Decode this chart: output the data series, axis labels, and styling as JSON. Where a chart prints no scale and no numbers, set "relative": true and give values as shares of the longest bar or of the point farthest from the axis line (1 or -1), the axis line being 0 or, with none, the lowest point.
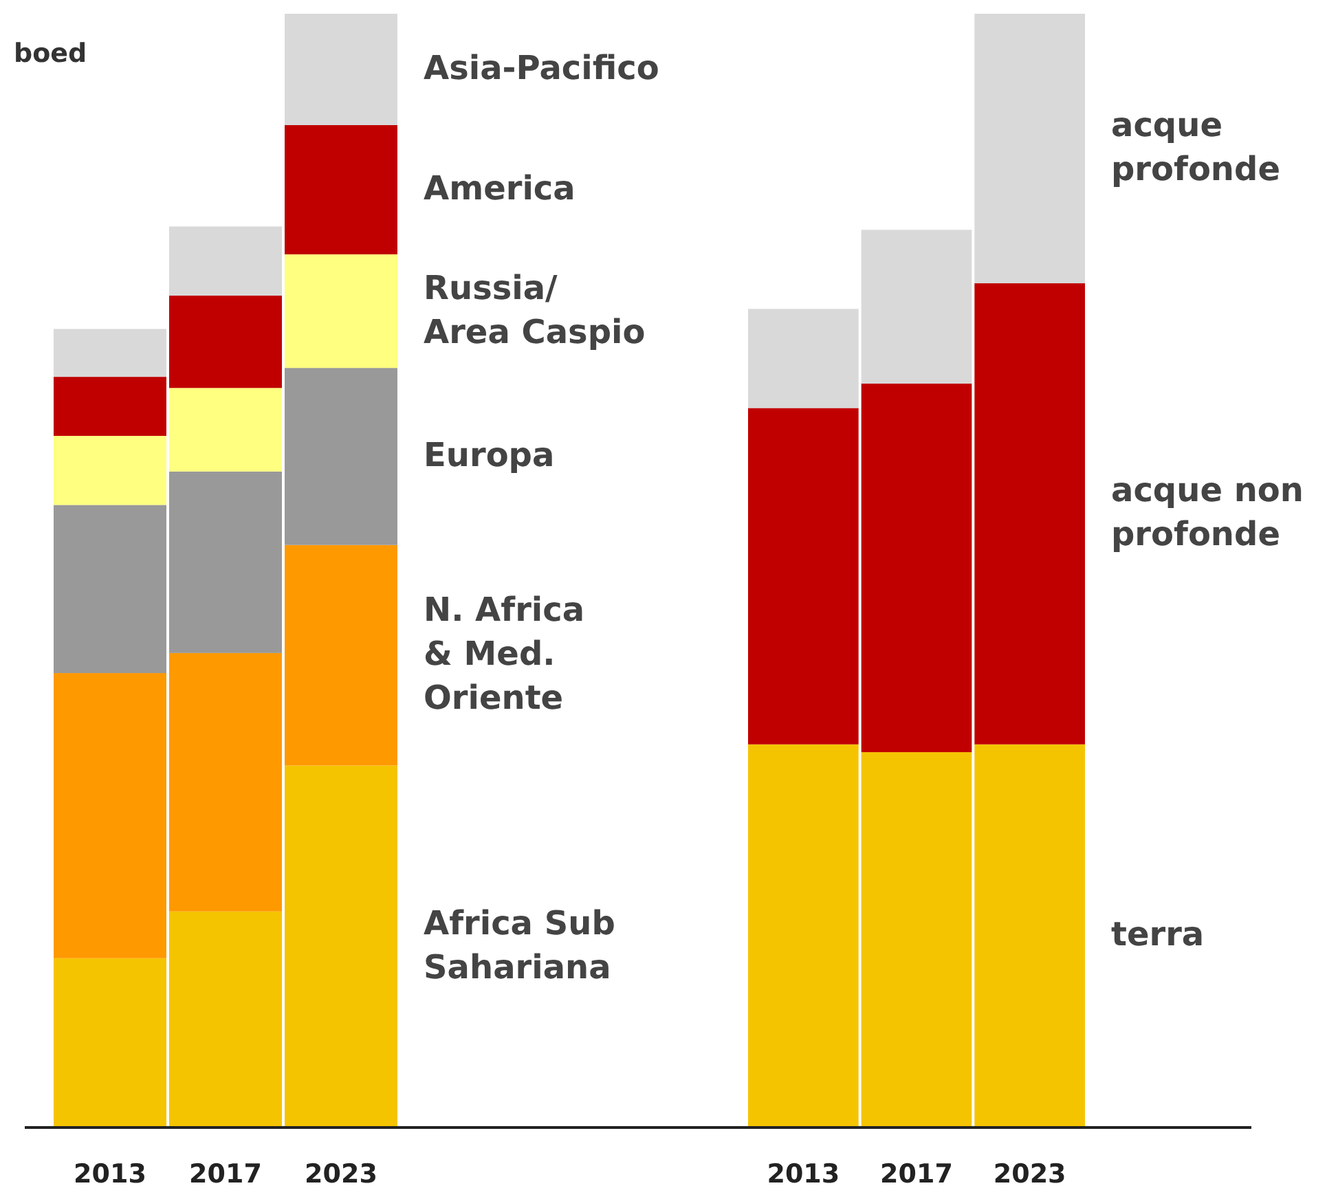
{
  "chart_data": [
    {
      "type": "bar",
      "stacked": true,
      "relative": true,
      "legend": false,
      "ylabel": "boed",
      "categories": [
        "2013",
        "2017",
        "2023"
      ],
      "series": [
        {
          "name": "Africa Sub\nSahariana",
          "color": "#f5c400",
          "values": [
            0.152,
            0.194,
            0.325
          ]
        },
        {
          "name": "N. Africa\n& Med.\nOriente",
          "color": "#ff9900",
          "values": [
            0.256,
            0.232,
            0.198
          ]
        },
        {
          "name": "Europa",
          "color": "#999999",
          "values": [
            0.151,
            0.163,
            0.159
          ]
        },
        {
          "name": "Russia/\nArea Caspio",
          "color": "#ffff80",
          "values": [
            0.062,
            0.075,
            0.102
          ]
        },
        {
          "name": "America",
          "color": "#c00000",
          "values": [
            0.053,
            0.083,
            0.116
          ]
        },
        {
          "name": "Asia-Pacifico",
          "color": "#d9d9d9",
          "values": [
            0.043,
            0.062,
            0.1
          ]
        }
      ]
    },
    {
      "type": "bar",
      "stacked": true,
      "relative": true,
      "legend": false,
      "categories": [
        "2013",
        "2017",
        "2023"
      ],
      "series": [
        {
          "name": "terra",
          "color": "#f5c400",
          "values": [
            0.344,
            0.337,
            0.344
          ]
        },
        {
          "name": "acque non\nprofonde",
          "color": "#c00000",
          "values": [
            0.302,
            0.331,
            0.414
          ]
        },
        {
          "name": "acque\nprofonde",
          "color": "#d9d9d9",
          "values": [
            0.089,
            0.138,
            0.242
          ]
        }
      ]
    }
  ]
}
